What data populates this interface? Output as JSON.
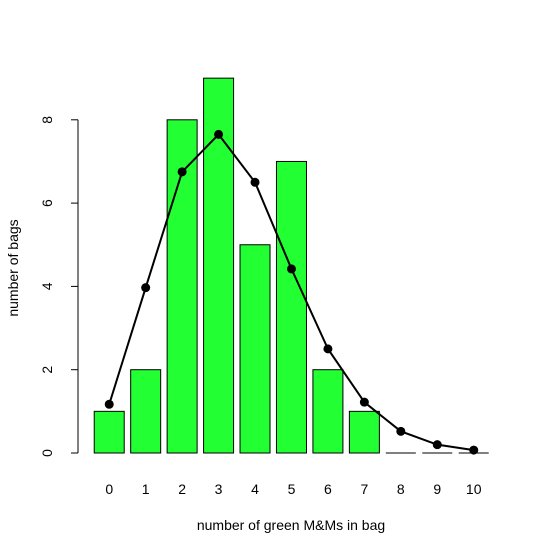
{
  "chart_data": {
    "type": "bar",
    "title": "",
    "xlabel": "number of green M&Ms in bag",
    "ylabel": "number of bags",
    "categories": [
      "0",
      "1",
      "2",
      "3",
      "4",
      "5",
      "6",
      "7",
      "8",
      "9",
      "10"
    ],
    "ylim": [
      0,
      9
    ],
    "y_ticks": [
      0,
      2,
      4,
      6,
      8
    ],
    "grid": false,
    "series": [
      {
        "type": "bar",
        "values": [
          1,
          2,
          8,
          9,
          5,
          7,
          2,
          1,
          0,
          0,
          0
        ],
        "color": "#22ff33"
      },
      {
        "type": "line",
        "values": [
          1.17,
          3.97,
          6.75,
          7.65,
          6.5,
          4.42,
          2.5,
          1.22,
          0.52,
          0.2,
          0.07
        ],
        "color": "#000000"
      }
    ]
  }
}
